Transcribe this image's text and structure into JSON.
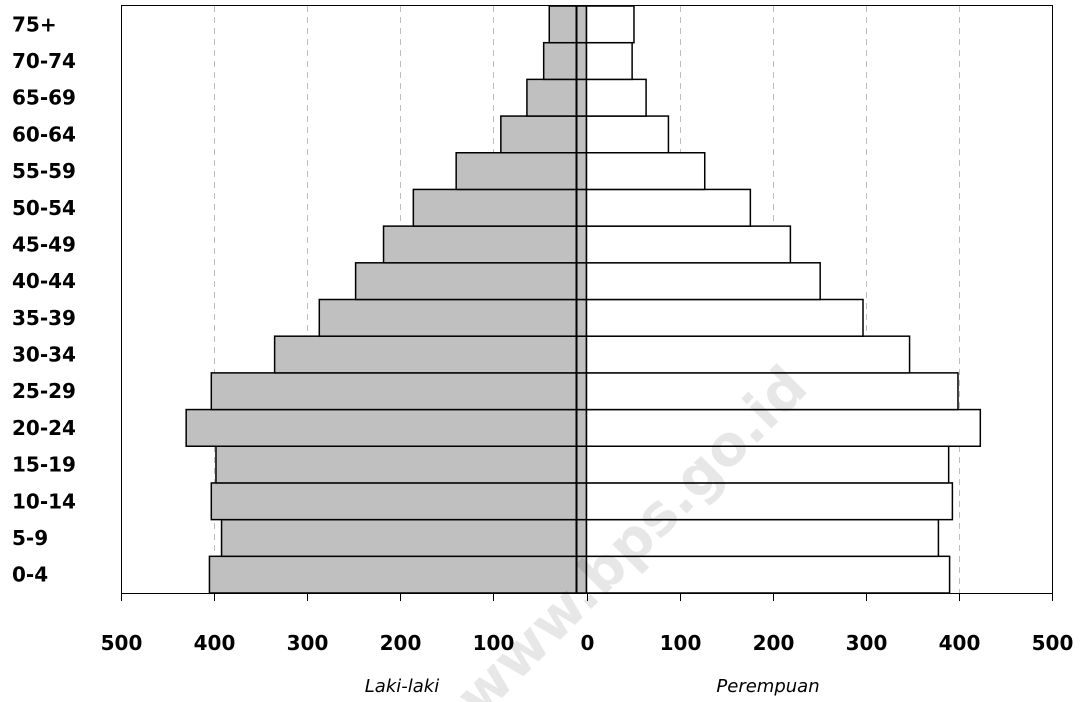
{
  "chart_data": {
    "type": "bar",
    "orientation": "horizontal",
    "categories": [
      "0-4",
      "5-9",
      "10-14",
      "15-19",
      "20-24",
      "25-29",
      "30-34",
      "35-39",
      "40-44",
      "45-49",
      "50-54",
      "55-59",
      "60-64",
      "65-69",
      "70-74",
      "75+"
    ],
    "series": [
      {
        "name": "Laki-laki",
        "values": [
          405,
          392,
          403,
          398,
          430,
          403,
          335,
          287,
          248,
          218,
          186,
          140,
          92,
          64,
          46,
          40
        ],
        "color": "#c0c0c0"
      },
      {
        "name": "Perempuan",
        "values": [
          390,
          378,
          393,
          389,
          423,
          399,
          347,
          297,
          251,
          219,
          176,
          127,
          88,
          64,
          49,
          51
        ],
        "color": "#ffffff"
      }
    ],
    "xlabel_left": "Laki-laki",
    "xlabel_right": "Perempuan",
    "x_ticks": [
      "500",
      "400",
      "300",
      "200",
      "100",
      "0",
      "100",
      "200",
      "300",
      "400",
      "500"
    ],
    "xlim": [
      -500,
      500
    ],
    "grid": "vertical dashed",
    "watermark": "www.bps.go.id"
  }
}
